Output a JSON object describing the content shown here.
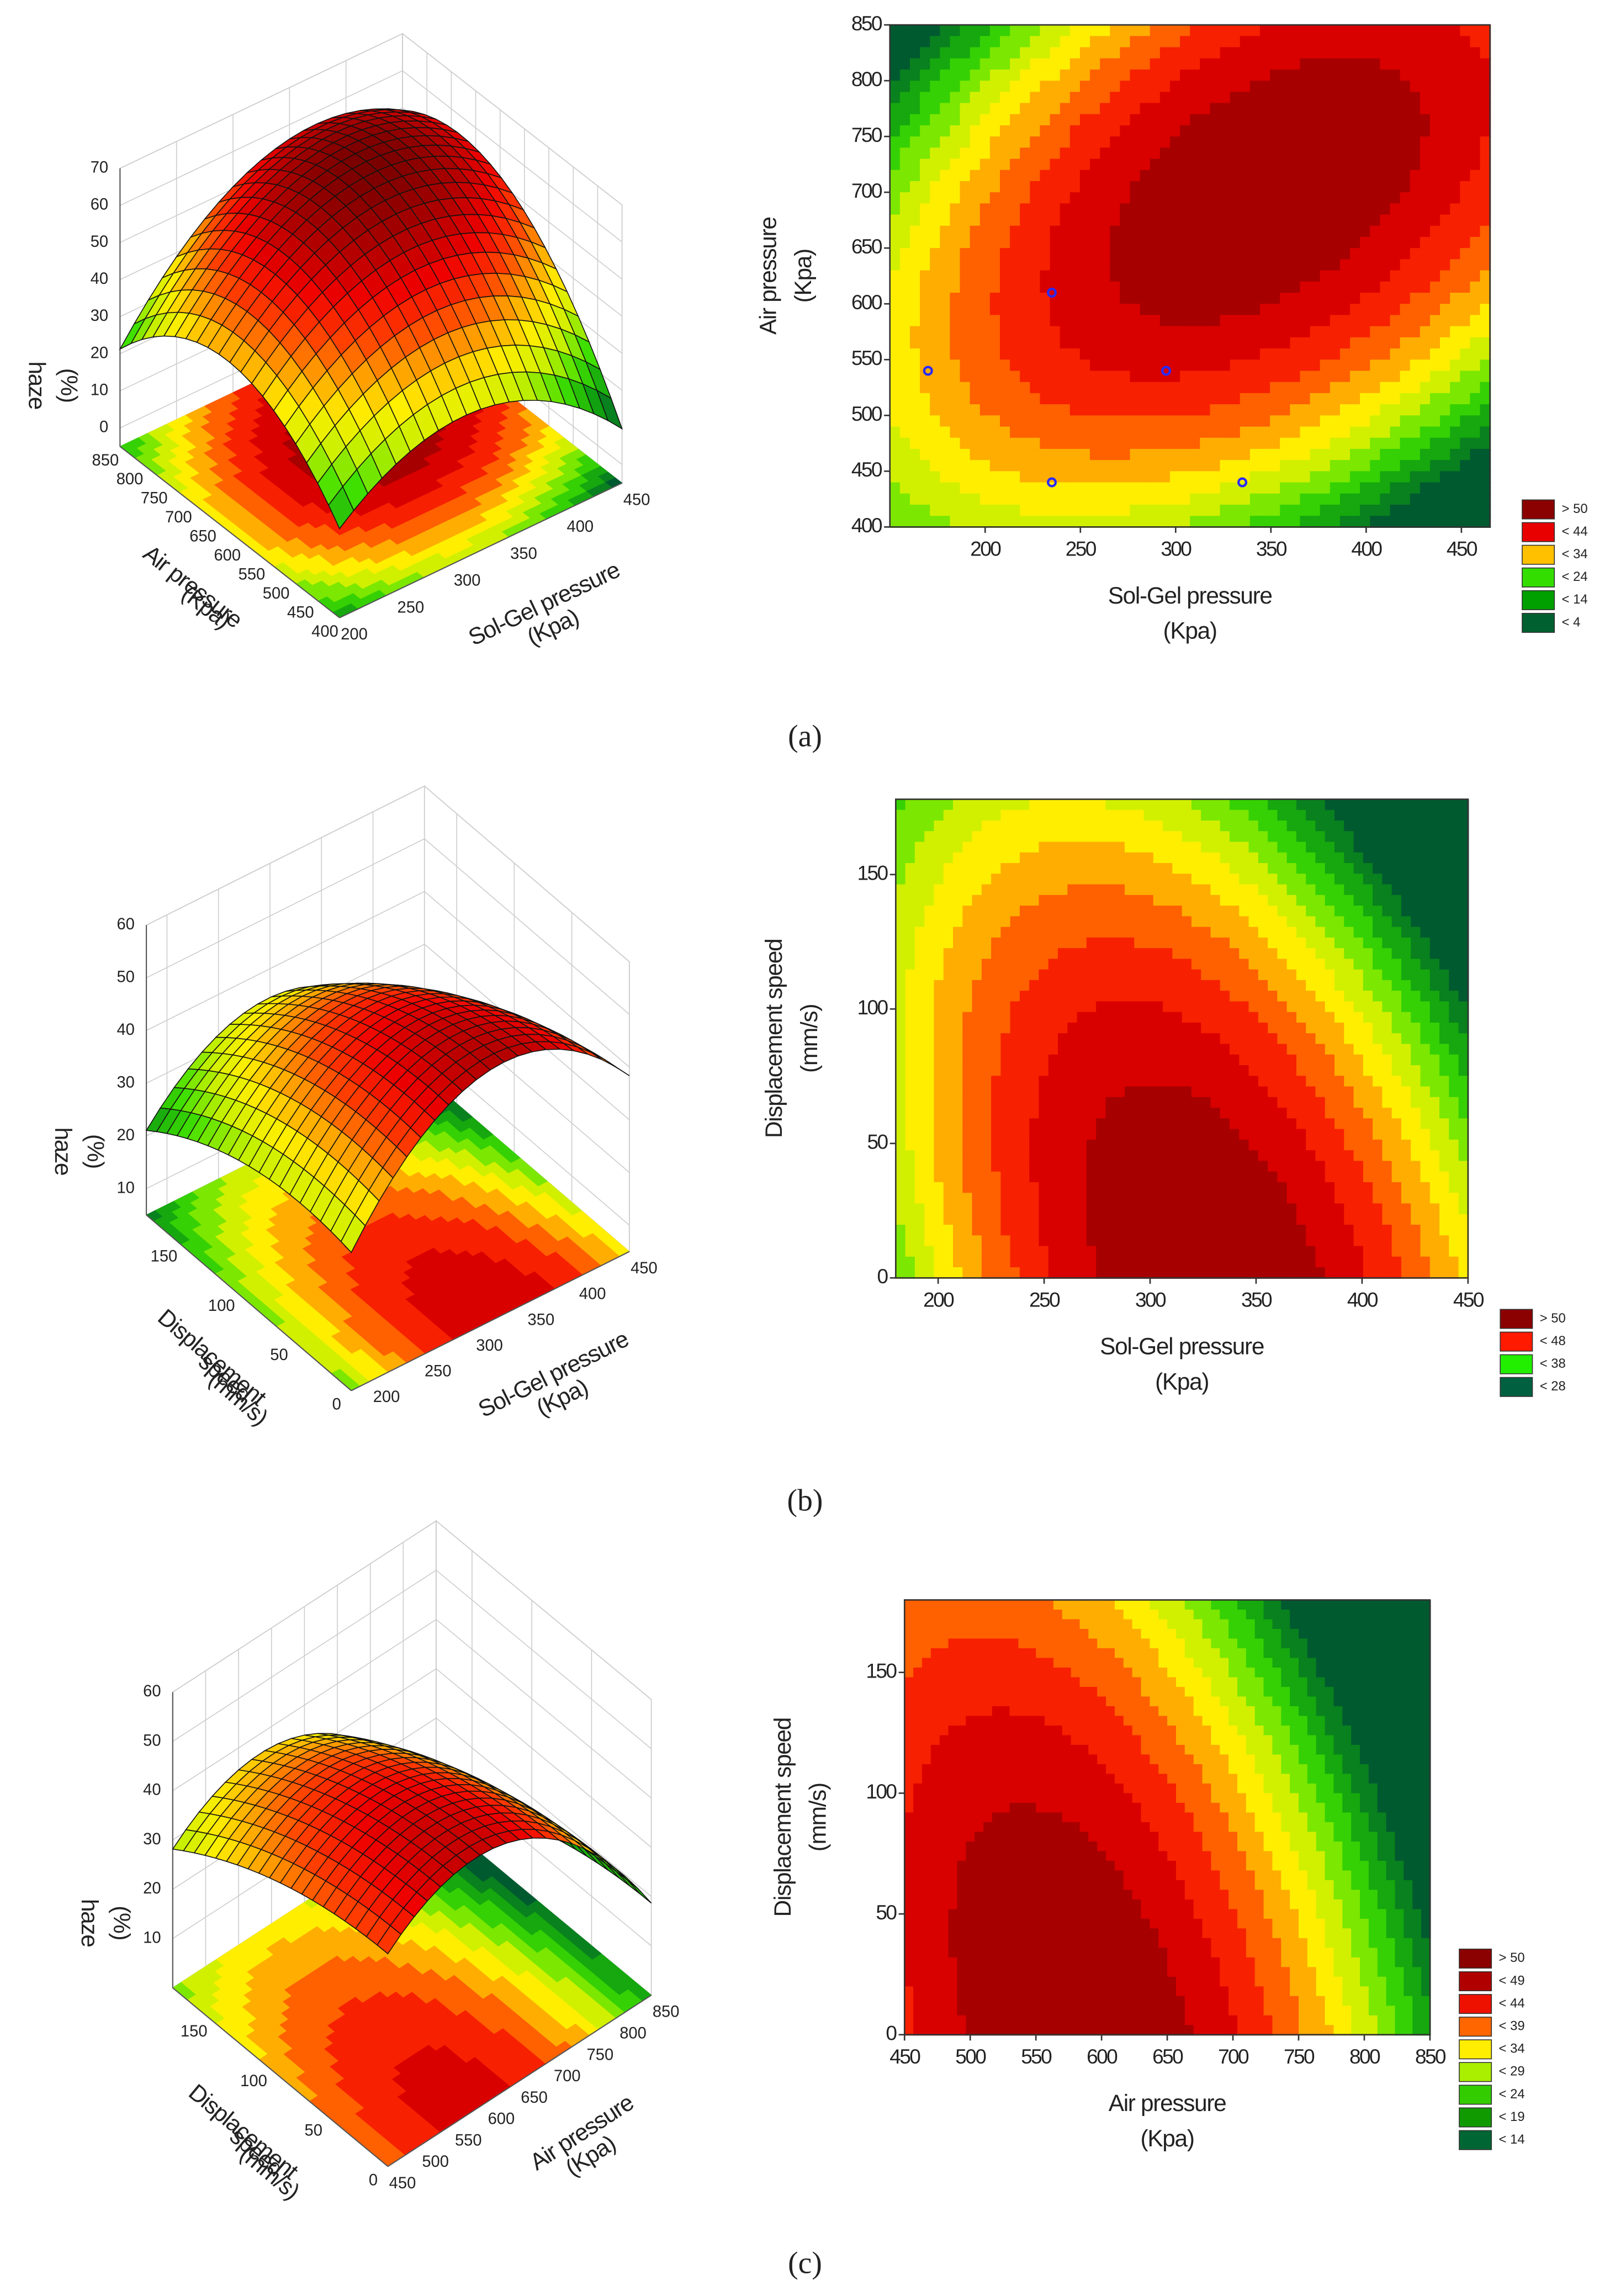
{
  "chart_data": [
    {
      "type": "surface3d",
      "x_label": [
        "Sol-Gel pressure",
        "(Kpa)"
      ],
      "y_label": [
        "Air pressure",
        "(Kpa)"
      ],
      "z_label": [
        "haze",
        "(%)"
      ],
      "xlim": [
        200,
        450
      ],
      "ylim": [
        400,
        850
      ],
      "zlim": [
        -5,
        70
      ],
      "xticks": [
        200,
        250,
        300,
        350,
        400,
        450
      ],
      "yticks": [
        400,
        450,
        500,
        550,
        600,
        650,
        700,
        750,
        800,
        850
      ],
      "zticks": [
        0,
        10,
        20,
        30,
        40,
        50,
        60,
        70
      ]
    },
    {
      "type": "contour",
      "x_label": [
        "Sol-Gel pressure",
        "(Kpa)"
      ],
      "y_label": [
        "Air pressure",
        "(Kpa)"
      ],
      "xlim": [
        150,
        465
      ],
      "ylim": [
        400,
        850
      ],
      "xticks": [
        200,
        250,
        300,
        350,
        400,
        450
      ],
      "yticks": [
        400,
        450,
        500,
        550,
        600,
        650,
        700,
        750,
        800,
        850
      ],
      "points": {
        "x": [
          170,
          235,
          235,
          295,
          335
        ],
        "y": [
          540,
          610,
          440,
          540,
          440
        ],
        "color": "#2a2aff"
      },
      "legend": [
        {
          "label": "> 50",
          "color": "#8b0000"
        },
        {
          "label": "< 44",
          "color": "#e80000"
        },
        {
          "label": "< 34",
          "color": "#ffc000"
        },
        {
          "label": "< 24",
          "color": "#33dd00"
        },
        {
          "label": "< 14",
          "color": "#00a000"
        },
        {
          "label": "< 4",
          "color": "#006030"
        }
      ],
      "caption": "(a)"
    },
    {
      "type": "surface3d",
      "x_label": [
        "Sol-Gel pressure",
        "(Kpa)"
      ],
      "y_label": [
        "Displacement",
        "speed",
        "(mm/s)"
      ],
      "z_label": [
        "haze",
        "(%)"
      ],
      "xlim": [
        180,
        450
      ],
      "ylim": [
        0,
        178
      ],
      "zlim": [
        5,
        60
      ],
      "xticks": [
        200,
        250,
        300,
        350,
        400,
        450
      ],
      "yticks": [
        0,
        50,
        100,
        150
      ],
      "zticks": [
        10,
        20,
        30,
        40,
        50,
        60
      ]
    },
    {
      "type": "contour",
      "x_label": [
        "Sol-Gel pressure",
        "(Kpa)"
      ],
      "y_label": [
        "Displacement speed",
        "(mm/s)"
      ],
      "xlim": [
        180,
        450
      ],
      "ylim": [
        0,
        178
      ],
      "xticks": [
        200,
        250,
        300,
        350,
        400,
        450
      ],
      "yticks": [
        0,
        50,
        100,
        150
      ],
      "legend": [
        {
          "label": "> 50",
          "color": "#8b0000"
        },
        {
          "label": "< 48",
          "color": "#ff1a00"
        },
        {
          "label": "< 38",
          "color": "#22ee00"
        },
        {
          "label": "< 28",
          "color": "#006040"
        }
      ],
      "caption": "(b)"
    },
    {
      "type": "surface3d",
      "x_label": [
        "Air pressure",
        "(Kpa)"
      ],
      "y_label": [
        "Displacement",
        "speed",
        "(mm/s)"
      ],
      "z_label": [
        "haze",
        "(%)"
      ],
      "xlim": [
        450,
        850
      ],
      "ylim": [
        0,
        180
      ],
      "zlim": [
        0,
        60
      ],
      "xticks": [
        450,
        500,
        550,
        600,
        650,
        700,
        750,
        800,
        850
      ],
      "yticks": [
        0,
        50,
        100,
        150
      ],
      "zticks": [
        10,
        20,
        30,
        40,
        50,
        60
      ]
    },
    {
      "type": "contour",
      "x_label": [
        "Air pressure",
        "(Kpa)"
      ],
      "y_label": [
        "Displacement speed",
        "(mm/s)"
      ],
      "xlim": [
        450,
        850
      ],
      "ylim": [
        0,
        180
      ],
      "xticks": [
        450,
        500,
        550,
        600,
        650,
        700,
        750,
        800,
        850
      ],
      "yticks": [
        0,
        50,
        100,
        150
      ],
      "legend": [
        {
          "label": "> 50",
          "color": "#8b0000"
        },
        {
          "label": "< 49",
          "color": "#b00000"
        },
        {
          "label": "< 44",
          "color": "#ee1100"
        },
        {
          "label": "< 39",
          "color": "#ff6600"
        },
        {
          "label": "< 34",
          "color": "#ffee00"
        },
        {
          "label": "< 29",
          "color": "#aaee00"
        },
        {
          "label": "< 24",
          "color": "#33cc00"
        },
        {
          "label": "< 19",
          "color": "#119900"
        },
        {
          "label": "< 14",
          "color": "#006633"
        }
      ],
      "caption": "(c)"
    }
  ]
}
